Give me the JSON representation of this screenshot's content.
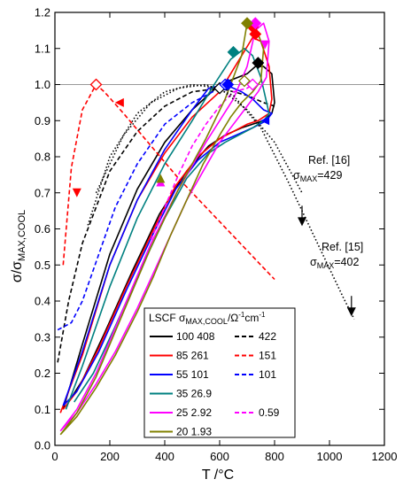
{
  "chart_data": {
    "type": "line",
    "title": "",
    "xlabel": "T /°C",
    "ylabel": "σ/σMAX,COOL",
    "xlim": [
      0,
      1200
    ],
    "ylim": [
      0.0,
      1.2
    ],
    "xticks": [
      0,
      200,
      400,
      600,
      800,
      1000,
      1200
    ],
    "yticks": [
      0.0,
      0.1,
      0.2,
      0.3,
      0.4,
      0.5,
      0.6,
      0.7,
      0.8,
      0.9,
      1.0,
      1.1,
      1.2
    ],
    "x_tick_labels": [
      "0",
      "200",
      "400",
      "600",
      "800",
      "1000",
      "1200"
    ],
    "y_tick_labels": [
      "0.0",
      "0.1",
      "0.2",
      "0.3",
      "0.4",
      "0.5",
      "0.6",
      "0.7",
      "0.8",
      "0.9",
      "1.0",
      "1.1",
      "1.2"
    ],
    "reference_line": 1.0,
    "legend": {
      "placement": "bottom-center",
      "header": "LSCF σMAX,COOL/Ω⁻¹cm⁻¹",
      "rows": [
        {
          "label": "100",
          "solid": "408",
          "dashed": "422",
          "color": "#000000"
        },
        {
          "label": "85",
          "solid": "261",
          "dashed": "151",
          "color": "#ff0000"
        },
        {
          "label": "55",
          "solid": "101",
          "dashed": "101",
          "color": "#0000ff"
        },
        {
          "label": "35",
          "solid": "26.9",
          "dashed": "",
          "color": "#008080"
        },
        {
          "label": "25",
          "solid": "2.92",
          "dashed": "0.59",
          "color": "#ff00ff"
        },
        {
          "label": "20",
          "solid": "1.93",
          "dashed": "",
          "color": "#808000"
        }
      ]
    },
    "annotations": [
      {
        "ref": "Ref. [16]",
        "sigma_label": "σMAX=429",
        "x": 900,
        "y": 0.69
      },
      {
        "ref": "Ref. [15]",
        "sigma_label": "σMAX=402",
        "x": 1090,
        "y": 0.47
      }
    ],
    "series": [
      {
        "name": "100 408",
        "color": "#000000",
        "dash": "solid",
        "x": [
          30,
          100,
          200,
          300,
          400,
          500,
          600,
          700,
          730,
          760,
          790,
          800,
          790,
          760,
          720,
          680,
          620,
          560,
          480,
          380,
          280,
          180,
          100,
          50
        ],
        "y": [
          0.1,
          0.28,
          0.53,
          0.71,
          0.84,
          0.93,
          1.0,
          1.03,
          1.05,
          1.05,
          1.03,
          0.95,
          0.92,
          0.9,
          0.89,
          0.88,
          0.86,
          0.83,
          0.76,
          0.64,
          0.48,
          0.31,
          0.18,
          0.12
        ]
      },
      {
        "name": "100 422",
        "color": "#000000",
        "dash": "dashed",
        "x": [
          10,
          50,
          100,
          200,
          300,
          400,
          500,
          600,
          700,
          760,
          800
        ],
        "y": [
          0.23,
          0.4,
          0.56,
          0.76,
          0.87,
          0.94,
          0.98,
          0.99,
          0.97,
          0.95,
          0.94
        ]
      },
      {
        "name": "85 261",
        "color": "#ff0000",
        "dash": "solid",
        "x": [
          20,
          100,
          200,
          300,
          400,
          500,
          600,
          680,
          720,
          750,
          780,
          790,
          780,
          740,
          700,
          650,
          600,
          520,
          440,
          360,
          260,
          160,
          80,
          30
        ],
        "y": [
          0.09,
          0.25,
          0.5,
          0.68,
          0.81,
          0.91,
          0.98,
          1.08,
          1.13,
          1.12,
          1.05,
          0.96,
          0.92,
          0.9,
          0.89,
          0.87,
          0.85,
          0.8,
          0.72,
          0.6,
          0.44,
          0.27,
          0.15,
          0.1
        ]
      },
      {
        "name": "85 151",
        "color": "#ff0000",
        "dash": "dashed",
        "x": [
          30,
          60,
          100,
          150,
          180,
          250,
          350,
          450,
          550,
          650,
          750,
          800
        ],
        "y": [
          0.5,
          0.77,
          0.93,
          1.0,
          0.98,
          0.92,
          0.83,
          0.74,
          0.66,
          0.58,
          0.5,
          0.46
        ]
      },
      {
        "name": "55 101",
        "color": "#0000ff",
        "dash": "solid",
        "x": [
          30,
          100,
          200,
          300,
          400,
          500,
          560,
          620,
          680,
          720,
          760,
          790,
          770,
          720,
          660,
          600,
          520,
          440,
          360,
          260,
          160,
          80,
          30
        ],
        "y": [
          0.11,
          0.26,
          0.5,
          0.68,
          0.82,
          0.93,
          0.99,
          1.0,
          0.98,
          0.96,
          0.93,
          0.92,
          0.9,
          0.88,
          0.86,
          0.84,
          0.79,
          0.71,
          0.59,
          0.43,
          0.26,
          0.15,
          0.11
        ]
      },
      {
        "name": "55 101",
        "color": "#0000ff",
        "dash": "dashed",
        "x": [
          10,
          60,
          100,
          160,
          220,
          300,
          400,
          500,
          600
        ],
        "y": [
          0.32,
          0.34,
          0.4,
          0.53,
          0.66,
          0.78,
          0.89,
          0.95,
          0.99
        ]
      },
      {
        "name": "35 26.9",
        "color": "#008080",
        "dash": "solid",
        "x": [
          40,
          100,
          200,
          300,
          400,
          500,
          580,
          640,
          690,
          720,
          750,
          780,
          760,
          720,
          670,
          620,
          560,
          480,
          400,
          320,
          220,
          140,
          70
        ],
        "y": [
          0.1,
          0.22,
          0.44,
          0.63,
          0.78,
          0.9,
          1.0,
          1.07,
          1.1,
          1.08,
          1.02,
          0.92,
          0.9,
          0.88,
          0.86,
          0.84,
          0.81,
          0.74,
          0.63,
          0.5,
          0.33,
          0.2,
          0.12
        ]
      },
      {
        "name": "25 2.92",
        "color": "#ff00ff",
        "dash": "solid",
        "x": [
          20,
          80,
          150,
          250,
          350,
          450,
          550,
          650,
          700,
          730,
          760,
          780,
          770,
          740,
          700,
          660,
          600,
          540,
          480,
          420,
          360,
          300,
          220,
          150,
          80,
          20
        ],
        "y": [
          0.04,
          0.1,
          0.2,
          0.38,
          0.56,
          0.71,
          0.84,
          0.96,
          1.05,
          1.15,
          1.17,
          1.12,
          1.02,
          0.98,
          0.94,
          0.9,
          0.84,
          0.76,
          0.68,
          0.58,
          0.48,
          0.38,
          0.26,
          0.17,
          0.09,
          0.04
        ]
      },
      {
        "name": "25 0.59",
        "color": "#ff00ff",
        "dash": "dashed",
        "x": [
          350,
          400,
          450,
          500,
          550,
          600,
          650,
          700,
          720
        ],
        "y": [
          0.57,
          0.66,
          0.75,
          0.83,
          0.89,
          0.94,
          0.98,
          0.99,
          1.0
        ]
      },
      {
        "name": "20 1.93",
        "color": "#808000",
        "dash": "solid",
        "x": [
          20,
          80,
          150,
          250,
          350,
          450,
          550,
          620,
          680,
          700,
          730,
          760,
          750,
          720,
          680,
          640,
          600,
          540,
          480,
          420,
          360,
          300,
          220,
          150,
          80,
          20
        ],
        "y": [
          0.03,
          0.09,
          0.19,
          0.37,
          0.55,
          0.71,
          0.85,
          0.96,
          1.08,
          1.17,
          1.16,
          1.1,
          1.01,
          0.98,
          0.95,
          0.91,
          0.86,
          0.78,
          0.68,
          0.58,
          0.47,
          0.37,
          0.25,
          0.16,
          0.08,
          0.03
        ]
      },
      {
        "name": "Ref. [16]",
        "color": "#000000",
        "dash": "dotted",
        "x": [
          120,
          200,
          300,
          400,
          500,
          600,
          700,
          800,
          900
        ],
        "y": [
          0.61,
          0.8,
          0.92,
          0.98,
          1.0,
          0.99,
          0.93,
          0.84,
          0.7
        ]
      },
      {
        "name": "Ref. [15]",
        "color": "#000000",
        "dash": "dotted",
        "x": [
          150,
          250,
          350,
          450,
          550,
          650,
          750,
          850,
          950,
          1050,
          1090
        ],
        "y": [
          0.7,
          0.86,
          0.95,
          0.99,
          1.0,
          0.97,
          0.88,
          0.73,
          0.57,
          0.41,
          0.35
        ]
      }
    ],
    "markers": [
      {
        "x": 150,
        "y": 1.0,
        "color": "#ff0000",
        "filled": false
      },
      {
        "x": 740,
        "y": 1.06,
        "color": "#000000",
        "filled": true
      },
      {
        "x": 600,
        "y": 0.99,
        "color": "#000000",
        "filled": false
      },
      {
        "x": 730,
        "y": 1.14,
        "color": "#ff0000",
        "filled": true
      },
      {
        "x": 720,
        "y": 1.16,
        "color": "#ff0000",
        "filled": true
      },
      {
        "x": 620,
        "y": 1.0,
        "color": "#0000ff",
        "filled": false
      },
      {
        "x": 630,
        "y": 1.0,
        "color": "#0000ff",
        "filled": true
      },
      {
        "x": 650,
        "y": 1.09,
        "color": "#008080",
        "filled": true
      },
      {
        "x": 730,
        "y": 1.17,
        "color": "#ff00ff",
        "filled": true
      },
      {
        "x": 720,
        "y": 1.0,
        "color": "#ff00ff",
        "filled": false
      },
      {
        "x": 700,
        "y": 1.17,
        "color": "#808000",
        "filled": true
      },
      {
        "x": 690,
        "y": 1.01,
        "color": "#808000",
        "filled": false
      }
    ],
    "arrows": [
      {
        "x": 80,
        "y": 0.7,
        "color": "#ff0000",
        "dir": "down"
      },
      {
        "x": 235,
        "y": 0.95,
        "color": "#ff0000",
        "dir": "left"
      },
      {
        "x": 385,
        "y": 0.73,
        "color": "#ff00ff",
        "dir": "up"
      },
      {
        "x": 385,
        "y": 0.74,
        "color": "#808000",
        "dir": "up"
      },
      {
        "x": 765,
        "y": 0.9,
        "color": "#0000ff",
        "dir": "left"
      },
      {
        "x": 765,
        "y": 1.11,
        "color": "#ff00ff",
        "dir": "down"
      },
      {
        "x": 900,
        "y": 0.62,
        "color": "#000000",
        "dir": "down"
      },
      {
        "x": 1080,
        "y": 0.37,
        "color": "#000000",
        "dir": "down"
      }
    ]
  }
}
